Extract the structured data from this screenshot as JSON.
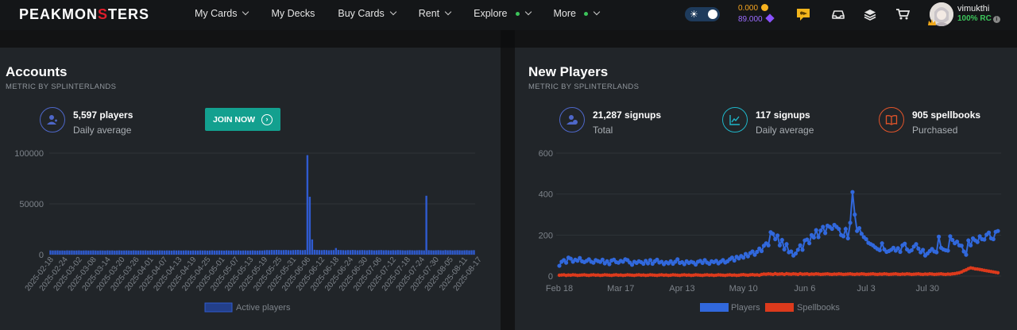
{
  "nav": {
    "logo_a": "PEAKMON",
    "logo_b": "S",
    "logo_c": "TERS",
    "menu": [
      {
        "label": "My Cards",
        "chevron": true,
        "dot": false
      },
      {
        "label": "My Decks",
        "chevron": false,
        "dot": false
      },
      {
        "label": "Buy Cards",
        "chevron": true,
        "dot": false
      },
      {
        "label": "Rent",
        "chevron": true,
        "dot": false
      },
      {
        "label": "Explore",
        "chevron": true,
        "dot": true
      },
      {
        "label": "More",
        "chevron": true,
        "dot": true
      }
    ],
    "dec_balance": "0.000",
    "sps_balance": "89.000",
    "username": "vimukthi",
    "rc": "100% RC"
  },
  "accounts": {
    "title": "Accounts",
    "subtitle": "METRIC BY SPLINTERLANDS",
    "stat_value": "5,597 players",
    "stat_label": "Daily average",
    "join_label": "JOIN NOW"
  },
  "new_players": {
    "title": "New Players",
    "subtitle": "METRIC BY SPLINTERLANDS",
    "stats": [
      {
        "value": "21,287 signups",
        "label": "Total"
      },
      {
        "value": "117 signups",
        "label": "Daily average"
      },
      {
        "value": "905 spellbooks",
        "label": "Purchased"
      }
    ]
  },
  "chart_data": [
    {
      "type": "bar",
      "title": "",
      "xlabel": "",
      "ylabel": "",
      "ylim": [
        0,
        100000
      ],
      "yticks": [
        "0",
        "50000",
        "100000"
      ],
      "xtick_labels": [
        "2025-02-18",
        "2025-02-24",
        "2025-03-02",
        "2025-03-08",
        "2025-03-14",
        "2025-03-20",
        "2025-03-26",
        "2025-04-01",
        "2025-04-07",
        "2025-04-13",
        "2025-04-19",
        "2025-04-25",
        "2025-05-01",
        "2025-05-07",
        "2025-05-13",
        "2025-05-19",
        "2025-05-25",
        "2025-05-31",
        "2025-06-06",
        "2025-06-12",
        "2025-06-18",
        "2025-06-24",
        "2025-06-30",
        "2025-07-06",
        "2025-07-12",
        "2025-07-18",
        "2025-07-24",
        "2025-07-30",
        "2025-08-05",
        "2025-08-11",
        "2025-08-17"
      ],
      "x_start": "2025-02-18",
      "series": [
        {
          "name": "Active players",
          "color": "#2f5bd0",
          "values": [
            4200,
            4100,
            4150,
            4200,
            4050,
            4100,
            4000,
            4200,
            4100,
            4150,
            4050,
            4100,
            4200,
            4000,
            4100,
            4150,
            4050,
            4100,
            4200,
            4100,
            4000,
            4150,
            4100,
            4050,
            4200,
            4100,
            4150,
            4000,
            4100,
            4200,
            4050,
            4100,
            4150,
            4100,
            4000,
            4200,
            4100,
            4050,
            4150,
            4100,
            4200,
            4000,
            4100,
            4150,
            4050,
            4100,
            4200,
            4100,
            4050,
            4150,
            4100,
            4000,
            4200,
            4100,
            4150,
            4050,
            4100,
            4200,
            4100,
            4000,
            4150,
            4100,
            4050,
            4200,
            4100,
            4150,
            4000,
            4100,
            4200,
            4050,
            4100,
            4150,
            4100,
            4000,
            4200,
            4100,
            4050,
            4150,
            4100,
            4200,
            4000,
            4100,
            4150,
            4050,
            4100,
            4200,
            4100,
            4050,
            4150,
            4100,
            4300,
            4500,
            4400,
            4600,
            4500,
            4700,
            4600,
            4400,
            4500,
            4600,
            4400,
            4300,
            4500,
            4600,
            4700,
            4500,
            4400,
            4600,
            98000,
            57000,
            15000,
            4800,
            4600,
            4500,
            4400,
            4600,
            4500,
            4300,
            4400,
            4500,
            6500,
            4600,
            4500,
            4400,
            4300,
            4500,
            4400,
            4600,
            4500,
            4300,
            4400,
            4500,
            4400,
            4300,
            4500,
            4400,
            4200,
            4300,
            4400,
            4500,
            4300,
            4400,
            4300,
            4200,
            4400,
            4300,
            4500,
            4400,
            4300,
            4200,
            4300,
            4400,
            4300,
            4200,
            4300,
            4400,
            4300,
            4200,
            58000,
            4400,
            4300,
            4200,
            4300,
            4400,
            4300,
            4200,
            4500,
            4300,
            4400,
            4200,
            4300,
            4400,
            4300,
            4200,
            4300,
            4400,
            4200,
            4300,
            4400
          ]
        }
      ]
    },
    {
      "type": "line",
      "title": "",
      "xlabel": "",
      "ylabel": "",
      "ylim": [
        0,
        600
      ],
      "yticks": [
        "0",
        "200",
        "400",
        "600"
      ],
      "xtick_labels": [
        "Feb 18",
        "Mar 17",
        "Apr 13",
        "May 10",
        "Jun 6",
        "Jul 3",
        "Jul 30"
      ],
      "x_start": "2025-02-18",
      "series": [
        {
          "name": "Players",
          "color": "#3168dc",
          "values": [
            50,
            70,
            78,
            65,
            90,
            85,
            70,
            80,
            75,
            88,
            72,
            68,
            74,
            82,
            70,
            65,
            78,
            73,
            69,
            80,
            62,
            72,
            58,
            76,
            80,
            68,
            65,
            74,
            70,
            82,
            78,
            66,
            55,
            70,
            64,
            72,
            68,
            60,
            74,
            62,
            78,
            60,
            72,
            80,
            66,
            70,
            58,
            68,
            62,
            72,
            60,
            70,
            82,
            64,
            68,
            58,
            72,
            64,
            70,
            66,
            56,
            70,
            74,
            64,
            78,
            66,
            60,
            72,
            68,
            74,
            62,
            70,
            78,
            66,
            72,
            82,
            90,
            76,
            94,
            86,
            98,
            90,
            108,
            96,
            112,
            120,
            104,
            118,
            134,
            122,
            148,
            160,
            150,
            214,
            206,
            180,
            198,
            150,
            176,
            130,
            156,
            116,
            120,
            100,
            110,
            128,
            150,
            128,
            174,
            178,
            160,
            200,
            188,
            224,
            190,
            222,
            240,
            210,
            246,
            240,
            230,
            250,
            240,
            230,
            200,
            194,
            230,
            184,
            260,
            410,
            300,
            220,
            234,
            206,
            190,
            180,
            162,
            156,
            150,
            140,
            132,
            126,
            160,
            130,
            118,
            122,
            128,
            138,
            124,
            136,
            118,
            150,
            158,
            130,
            120,
            126,
            144,
            156,
            134,
            116,
            128,
            100,
            110,
            122,
            132,
            120,
            116,
            192,
            138,
            130,
            126,
            124,
            194,
            176,
            160,
            168,
            150,
            148,
            120,
            104,
            174,
            150,
            184,
            174,
            166,
            194,
            180,
            178,
            202,
            212,
            184,
            180,
            216,
            220
          ]
        },
        {
          "name": "Spellbooks",
          "color": "#dc3a1c",
          "values": [
            4,
            5,
            6,
            3,
            5,
            4,
            6,
            5,
            3,
            4,
            5,
            6,
            4,
            3,
            5,
            6,
            4,
            5,
            3,
            4,
            6,
            5,
            4,
            3,
            5,
            6,
            4,
            5,
            3,
            4,
            6,
            5,
            4,
            3,
            5,
            6,
            4,
            5,
            3,
            4,
            6,
            5,
            4,
            3,
            5,
            6,
            4,
            5,
            3,
            4,
            6,
            5,
            4,
            3,
            5,
            6,
            4,
            5,
            3,
            4,
            6,
            5,
            4,
            3,
            5,
            6,
            4,
            5,
            3,
            4,
            6,
            5,
            4,
            3,
            5,
            6,
            4,
            5,
            3,
            4,
            6,
            7,
            5,
            4,
            6,
            7,
            5,
            6,
            4,
            8,
            10,
            9,
            11,
            10,
            8,
            12,
            9,
            10,
            11,
            8,
            12,
            10,
            9,
            11,
            10,
            8,
            12,
            9,
            10,
            11,
            8,
            10,
            9,
            11,
            10,
            8,
            9,
            10,
            11,
            9,
            8,
            10,
            9,
            11,
            10,
            8,
            9,
            10,
            11,
            9,
            8,
            10,
            9,
            11,
            10,
            8,
            9,
            10,
            11,
            9,
            8,
            10,
            9,
            11,
            10,
            8,
            9,
            10,
            11,
            9,
            8,
            10,
            9,
            11,
            10,
            8,
            9,
            10,
            11,
            9,
            8,
            10,
            9,
            11,
            10,
            8,
            9,
            10,
            11,
            9,
            8,
            10,
            9,
            11,
            12,
            14,
            16,
            20,
            26,
            30,
            36,
            40,
            38,
            35,
            34,
            32,
            30,
            28,
            26,
            24,
            22,
            20,
            18,
            16
          ]
        }
      ]
    }
  ]
}
